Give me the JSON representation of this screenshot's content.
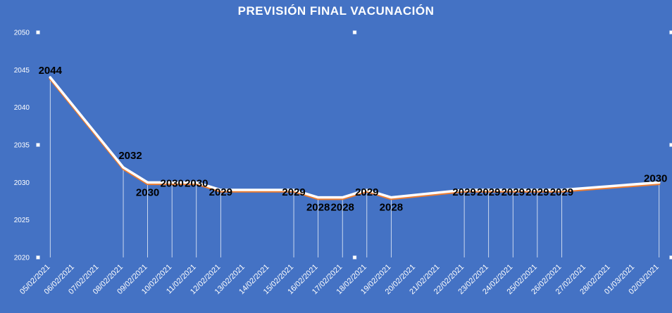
{
  "colors": {
    "background": "#4472C4",
    "line_main": "#FFFFFF",
    "line_shadow": "#ED7D31",
    "drop_lines": "#FFFFFF",
    "data_label": "#000000",
    "text": "#FFFFFF"
  },
  "chart_data": {
    "type": "line",
    "title": "PREVISIÓN FINAL VACUNACIÓN",
    "xlabel": "",
    "ylabel": "",
    "ylim": [
      2020,
      2050
    ],
    "yticks": [
      2020,
      2025,
      2030,
      2035,
      2040,
      2045,
      2050
    ],
    "grid": false,
    "legend": "none",
    "categories": [
      "05/02/2021",
      "06/02/2021",
      "07/02/2021",
      "08/02/2021",
      "09/02/2021",
      "10/02/2021",
      "11/02/2021",
      "12/02/2021",
      "13/02/2021",
      "14/02/2021",
      "15/02/2021",
      "16/02/2021",
      "17/02/2021",
      "18/02/2021",
      "19/02/2021",
      "20/02/2021",
      "21/02/2021",
      "22/02/2021",
      "23/02/2021",
      "24/02/2021",
      "25/02/2021",
      "26/02/2021",
      "27/02/2021",
      "28/02/2021",
      "01/03/2021",
      "02/03/2021"
    ],
    "series": [
      {
        "x": [
          "05/02/2021",
          "08/02/2021",
          "09/02/2021",
          "10/02/2021",
          "11/02/2021",
          "12/02/2021",
          "15/02/2021",
          "16/02/2021",
          "17/02/2021",
          "18/02/2021",
          "19/02/2021",
          "22/02/2021",
          "23/02/2021",
          "24/02/2021",
          "25/02/2021",
          "26/02/2021",
          "02/03/2021"
        ],
        "values": [
          2044,
          2032,
          2030,
          2030,
          2030,
          2029,
          2029,
          2028,
          2028,
          2029,
          2028,
          2029,
          2029,
          2029,
          2029,
          2029,
          2030
        ],
        "data_labels": [
          "2044",
          "2032",
          "2030",
          "2030",
          "2030",
          "2029",
          "2029",
          "2028",
          "2028",
          "2029",
          "2028",
          "2029",
          "2029",
          "2029",
          "2029",
          "2029",
          "2030"
        ]
      }
    ]
  }
}
